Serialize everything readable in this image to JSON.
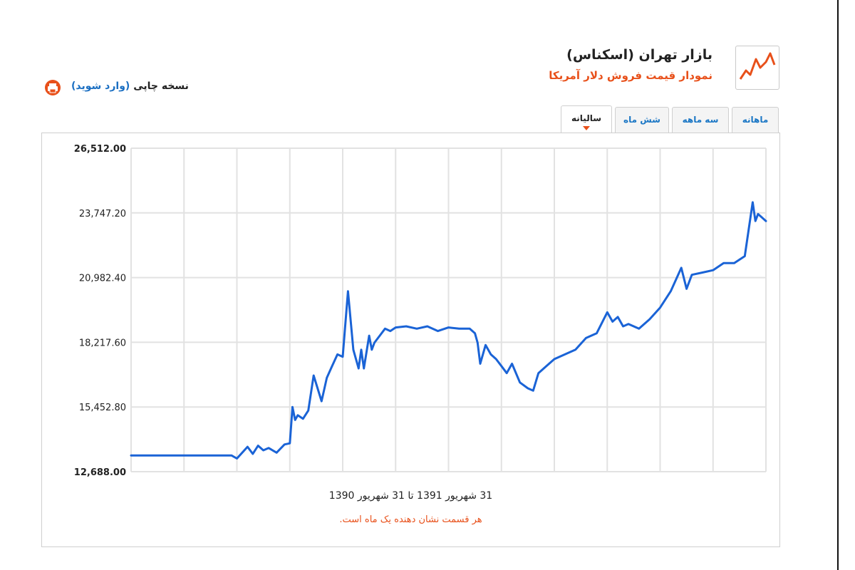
{
  "header": {
    "title": "بازار تهران (اسکناس)",
    "subtitle": "نمودار قیمت فروش دلار آمریکا",
    "icon": "line-chart-icon"
  },
  "print_link": {
    "label": "نسخه چاپی",
    "login_label": "(وارد شوید)",
    "icon": "print-icon"
  },
  "tabs": [
    {
      "label": "ماهانه",
      "active": false
    },
    {
      "label": "سه ماهه",
      "active": false
    },
    {
      "label": "شش ماه",
      "active": false
    },
    {
      "label": "سالیانه",
      "active": true
    }
  ],
  "footer": {
    "range_text": "31 شهریور 1391 تا 31 شهریور 1390",
    "note": "هر قسمت نشان دهنده یک ماه است."
  },
  "colors": {
    "line": "#1a63d6",
    "accent": "#e8501a",
    "link": "#1b77c5",
    "grid": "#e2e2e2"
  },
  "chart_data": {
    "type": "line",
    "title": "نمودار قیمت فروش دلار آمریکا",
    "xlabel": "",
    "ylabel": "",
    "ylim": [
      12688.0,
      26512.0
    ],
    "y_tick_labels": [
      "26,512.00",
      "23,747.20",
      "20,982.40",
      "18,217.60",
      "15,452.80",
      "12,688.00"
    ],
    "xlim": [
      0,
      12
    ],
    "x_tick_count": 12,
    "grid": true,
    "legend": "none",
    "series": [
      {
        "x": [
          0,
          0.5,
          1,
          1.5,
          1.8,
          1.9,
          2.0,
          2.2,
          2.3,
          2.4,
          2.5,
          2.6,
          2.75,
          2.9,
          3.0,
          3.05,
          3.1,
          3.15,
          3.25,
          3.35,
          3.45,
          3.6,
          3.65,
          3.7,
          3.8,
          3.9,
          4.0,
          4.1,
          4.2,
          4.3,
          4.35,
          4.4,
          4.5,
          4.55,
          4.6,
          4.7,
          4.8,
          4.9,
          5.0,
          5.2,
          5.4,
          5.6,
          5.8,
          6.0,
          6.2,
          6.4,
          6.5,
          6.55,
          6.6,
          6.7,
          6.8,
          6.9,
          7.0,
          7.1,
          7.2,
          7.35,
          7.5,
          7.6,
          7.7,
          7.8,
          7.9,
          8.0,
          8.2,
          8.4,
          8.6,
          8.8,
          9.0,
          9.1,
          9.2,
          9.3,
          9.4,
          9.5,
          9.6,
          9.8,
          10.0,
          10.2,
          10.4,
          10.5,
          10.6,
          10.8,
          11.0,
          11.2,
          11.4,
          11.6,
          11.75,
          11.8,
          11.85,
          11.9,
          12.0
        ],
        "values": [
          13380,
          13380,
          13380,
          13380,
          13380,
          13380,
          13250,
          13750,
          13450,
          13800,
          13600,
          13700,
          13500,
          13850,
          13900,
          15450,
          14900,
          15100,
          14950,
          15300,
          16800,
          15700,
          16200,
          16700,
          17200,
          17700,
          17600,
          20400,
          17900,
          17100,
          17900,
          17100,
          18500,
          17900,
          18200,
          18500,
          18800,
          18700,
          18850,
          18900,
          18800,
          18900,
          18700,
          18850,
          18800,
          18800,
          18600,
          18200,
          17300,
          18100,
          17700,
          17500,
          17200,
          16900,
          17300,
          16500,
          16250,
          16150,
          16900,
          17100,
          17300,
          17500,
          17700,
          17900,
          18400,
          18600,
          19500,
          19100,
          19300,
          18900,
          19000,
          18900,
          18800,
          19200,
          19700,
          20400,
          21400,
          20500,
          21100,
          21200,
          21300,
          21600,
          21600,
          21900,
          24200,
          23400,
          23700,
          23600,
          23400
        ]
      }
    ]
  }
}
